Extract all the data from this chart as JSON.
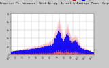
{
  "title": "Solar PV/Inverter Performance  West Array  Actual & Average Power Output",
  "title_fontsize": 3.2,
  "bg_color": "#c8c8c8",
  "plot_bg_color": "#ffffff",
  "grid_color": "#888888",
  "actual_color": "#dd0000",
  "average_color": "#0000ff",
  "legend_actual": "Actual",
  "legend_average": "Average",
  "ylim": [
    0,
    1.0
  ],
  "num_points": 800,
  "y_ticks": [
    0.0,
    0.2,
    0.4,
    0.6,
    0.8,
    1.0
  ],
  "y_labels": [
    "0",
    ".2k",
    ".4k",
    ".6k",
    ".8k",
    "1k"
  ]
}
